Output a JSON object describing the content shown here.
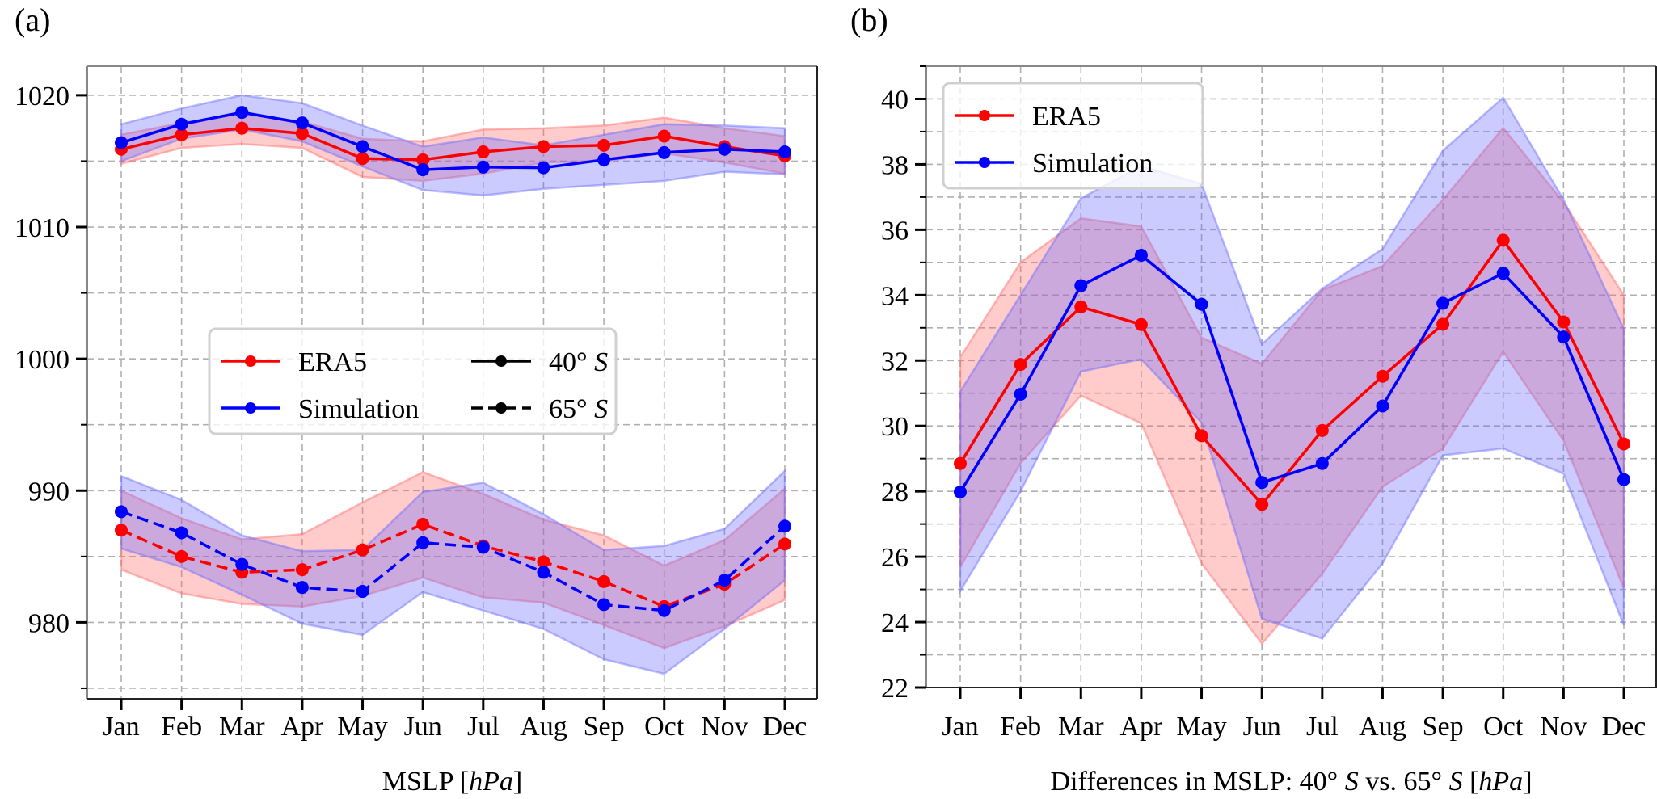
{
  "figure": {
    "panels": [
      "(a)",
      "(b)"
    ]
  },
  "colors": {
    "era5": "#ff0000",
    "simulation": "#0000ff",
    "era5_band": "#ff6b6b",
    "simulation_band": "#6b6bff",
    "grid": "#b0b0b0",
    "legend_border": "#d0d0d0"
  },
  "chart_data": [
    {
      "id": "a",
      "type": "line",
      "title": "",
      "panel_label": "(a)",
      "xlabel": "MSLP [hPa]",
      "xlabel_parts": [
        {
          "text": "MSLP [",
          "italic": false
        },
        {
          "text": "hPa",
          "italic": true
        },
        {
          "text": "]",
          "italic": false
        }
      ],
      "ylabel": "",
      "categories": [
        "Jan",
        "Feb",
        "Mar",
        "Apr",
        "May",
        "Jun",
        "Jul",
        "Aug",
        "Sep",
        "Oct",
        "Nov",
        "Dec"
      ],
      "ylim": [
        974.2,
        1022.2
      ],
      "yticks_major": [
        980,
        990,
        1000,
        1010,
        1020
      ],
      "yticks_minor": [
        975,
        985,
        995,
        1005,
        1015
      ],
      "grid": true,
      "legend": {
        "placement": "center-left",
        "entries": [
          {
            "label": "ERA5",
            "style": "solid",
            "color_key": "era5"
          },
          {
            "label": "Simulation",
            "style": "solid",
            "color_key": "simulation"
          },
          {
            "label": "40° S",
            "label_parts": [
              "40° ",
              "S"
            ],
            "style": "solid",
            "color_key": "black"
          },
          {
            "label": "65° S",
            "label_parts": [
              "65° ",
              "S"
            ],
            "style": "dashed",
            "color_key": "black"
          }
        ]
      },
      "series": [
        {
          "name": "ERA5 40° S",
          "source": "ERA5",
          "latitude": "40° S",
          "style": "solid",
          "color_key": "era5",
          "values": [
            1015.9,
            1017.0,
            1017.5,
            1017.1,
            1015.2,
            1015.1,
            1015.7,
            1016.1,
            1016.2,
            1016.9,
            1016.1,
            1015.4
          ],
          "band_upper": [
            1017.0,
            1017.9,
            1018.6,
            1018.0,
            1016.7,
            1016.5,
            1017.4,
            1017.5,
            1017.7,
            1018.3,
            1017.5,
            1016.9
          ],
          "band_lower": [
            1014.8,
            1016.0,
            1016.3,
            1016.0,
            1013.8,
            1013.5,
            1014.05,
            1014.9,
            1015.0,
            1015.6,
            1014.9,
            1014.05
          ]
        },
        {
          "name": "Simulation 40° S",
          "source": "Simulation",
          "latitude": "40° S",
          "style": "solid",
          "color_key": "simulation",
          "values": [
            1016.4,
            1017.8,
            1018.7,
            1017.9,
            1016.1,
            1014.35,
            1014.55,
            1014.5,
            1015.1,
            1015.65,
            1015.9,
            1015.7
          ],
          "band_upper": [
            1017.8,
            1019.0,
            1020.0,
            1019.4,
            1017.7,
            1016.1,
            1016.8,
            1016.2,
            1017.0,
            1017.8,
            1017.7,
            1017.5
          ],
          "band_lower": [
            1015.0,
            1016.7,
            1017.4,
            1016.5,
            1014.6,
            1012.8,
            1012.4,
            1012.9,
            1013.2,
            1013.5,
            1014.2,
            1014.0
          ]
        },
        {
          "name": "ERA5 65° S",
          "source": "ERA5",
          "latitude": "65° S",
          "style": "dashed",
          "color_key": "era5",
          "values": [
            987.0,
            985.0,
            983.8,
            984.0,
            985.5,
            987.45,
            985.8,
            984.6,
            983.1,
            981.2,
            982.9,
            985.95
          ],
          "band_upper": [
            990.0,
            987.9,
            986.3,
            986.7,
            989.1,
            991.4,
            989.75,
            987.8,
            986.6,
            984.3,
            986.25,
            990.15
          ],
          "band_lower": [
            984.0,
            982.2,
            981.4,
            981.2,
            982.0,
            983.4,
            981.9,
            981.5,
            979.8,
            978.05,
            979.7,
            981.7
          ]
        },
        {
          "name": "Simulation 65° S",
          "source": "Simulation",
          "latitude": "65° S",
          "style": "dashed",
          "color_key": "simulation",
          "values": [
            988.4,
            986.8,
            984.4,
            982.65,
            982.35,
            986.05,
            985.7,
            983.8,
            981.35,
            980.9,
            983.2,
            987.3
          ],
          "band_upper": [
            991.1,
            989.3,
            986.6,
            985.4,
            985.5,
            989.9,
            990.6,
            988.2,
            985.5,
            985.8,
            987.1,
            991.5
          ],
          "band_lower": [
            985.6,
            984.2,
            982.1,
            979.9,
            979.05,
            982.3,
            980.9,
            979.5,
            977.2,
            976.1,
            979.5,
            983.2
          ]
        }
      ]
    },
    {
      "id": "b",
      "type": "line",
      "title": "",
      "panel_label": "(b)",
      "xlabel": "Differences in MSLP: 40° S vs. 65° S [hPa]",
      "xlabel_parts": [
        {
          "text": "Differences in MSLP: 40° ",
          "italic": false
        },
        {
          "text": "S",
          "italic": true
        },
        {
          "text": " vs. 65° ",
          "italic": false
        },
        {
          "text": "S",
          "italic": true
        },
        {
          "text": " [",
          "italic": false
        },
        {
          "text": "hPa",
          "italic": true
        },
        {
          "text": "]",
          "italic": false
        }
      ],
      "ylabel": "",
      "categories": [
        "Jan",
        "Feb",
        "Mar",
        "Apr",
        "May",
        "Jun",
        "Jul",
        "Aug",
        "Sep",
        "Oct",
        "Nov",
        "Dec"
      ],
      "ylim": [
        22,
        41
      ],
      "yticks_major": [
        22,
        24,
        26,
        28,
        30,
        32,
        34,
        36,
        38,
        40
      ],
      "yticks_minor": [
        23,
        25,
        27,
        29,
        31,
        33,
        35,
        37,
        39,
        41
      ],
      "grid": true,
      "legend": {
        "placement": "top-left",
        "entries": [
          {
            "label": "ERA5",
            "style": "solid",
            "color_key": "era5"
          },
          {
            "label": "Simulation",
            "style": "solid",
            "color_key": "simulation"
          }
        ]
      },
      "series": [
        {
          "name": "ERA5",
          "style": "solid",
          "color_key": "era5",
          "values": [
            28.85,
            31.88,
            33.64,
            33.1,
            29.7,
            27.6,
            29.86,
            31.52,
            33.11,
            35.68,
            33.18,
            29.45
          ],
          "band_upper": [
            32.1,
            35.0,
            36.35,
            36.1,
            32.7,
            31.9,
            34.16,
            34.89,
            36.92,
            39.11,
            36.84,
            34.0
          ],
          "band_lower": [
            25.68,
            28.86,
            30.93,
            30.08,
            25.8,
            23.34,
            25.48,
            28.14,
            29.3,
            32.27,
            29.55,
            25.03
          ]
        },
        {
          "name": "Simulation",
          "style": "solid",
          "color_key": "simulation",
          "values": [
            27.98,
            30.97,
            34.29,
            35.22,
            33.72,
            28.27,
            28.85,
            30.61,
            33.75,
            34.67,
            32.72,
            28.36
          ],
          "band_upper": [
            31.05,
            34.0,
            36.96,
            37.95,
            37.4,
            32.5,
            34.2,
            35.41,
            38.42,
            40.04,
            36.92,
            32.96
          ],
          "band_lower": [
            24.95,
            28.0,
            31.66,
            32.04,
            30.1,
            24.1,
            23.5,
            25.8,
            29.1,
            29.31,
            28.54,
            23.9
          ]
        }
      ]
    }
  ]
}
